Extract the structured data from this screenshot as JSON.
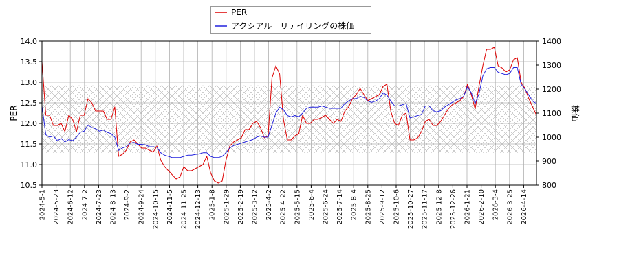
{
  "chart_data": {
    "type": "line",
    "legend_placement": "top",
    "grid": true,
    "x_tick_labels": [
      "2024-5-1",
      "2024-5-23",
      "2024-6-12",
      "2024-7-2",
      "2024-7-23",
      "2024-8-13",
      "2024-9-2",
      "2024-9-24",
      "2024-10-15",
      "2024-11-5",
      "2024-11-25",
      "2024-12-13",
      "2025-1-8",
      "2025-1-29",
      "2025-2-19",
      "2025-3-12",
      "2025-4-2",
      "2025-4-22",
      "2025-5-15",
      "2025-6-4",
      "2025-6-24",
      "2025-7-14",
      "2025-8-4",
      "2025-8-25",
      "2025-9-12",
      "2025-10-6",
      "2025-10-27",
      "2025-11-17",
      "2025-12-8",
      "2025-12-26",
      "2026-1-21",
      "2026-2-10",
      "2026-3-4",
      "2026-3-25",
      "2026-4-14"
    ],
    "y_left": {
      "label": "PER",
      "range": [
        10.5,
        14.0
      ],
      "ticks": [
        "10.5",
        "11.0",
        "11.5",
        "12.0",
        "12.5",
        "13.0",
        "13.5",
        "14.0"
      ]
    },
    "y_right": {
      "label": "株価",
      "range": [
        800,
        1400
      ],
      "ticks": [
        "800",
        "900",
        "1000",
        "1100",
        "1200",
        "1300",
        "1400"
      ]
    },
    "hatched_band": {
      "axis": "right",
      "range": [
        935,
        1215
      ]
    },
    "series": [
      {
        "name": "PER",
        "axis": "left",
        "color": "#dd0000",
        "values": [
          13.5,
          12.2,
          12.2,
          11.95,
          11.95,
          12.0,
          11.8,
          12.2,
          12.1,
          11.8,
          12.2,
          12.2,
          12.6,
          12.5,
          12.3,
          12.3,
          12.3,
          12.1,
          12.1,
          12.4,
          11.2,
          11.25,
          11.35,
          11.55,
          11.6,
          11.5,
          11.4,
          11.4,
          11.35,
          11.3,
          11.45,
          11.1,
          10.95,
          10.85,
          10.75,
          10.65,
          10.7,
          10.95,
          10.85,
          10.85,
          10.9,
          10.95,
          11.0,
          11.2,
          10.8,
          10.6,
          10.55,
          10.6,
          11.1,
          11.45,
          11.55,
          11.6,
          11.65,
          11.85,
          11.85,
          12.0,
          12.05,
          11.9,
          11.65,
          11.7,
          13.1,
          13.4,
          13.2,
          12.1,
          11.6,
          11.6,
          11.7,
          11.75,
          12.2,
          12.0,
          12.0,
          12.1,
          12.1,
          12.15,
          12.2,
          12.1,
          12.0,
          12.1,
          12.05,
          12.3,
          12.4,
          12.6,
          12.7,
          12.85,
          12.7,
          12.55,
          12.6,
          12.65,
          12.7,
          12.9,
          12.95,
          12.3,
          12.0,
          11.95,
          12.2,
          12.25,
          11.6,
          11.6,
          11.65,
          11.8,
          12.05,
          12.1,
          11.95,
          11.95,
          12.05,
          12.2,
          12.35,
          12.45,
          12.5,
          12.55,
          12.65,
          12.95,
          12.7,
          12.35,
          12.9,
          13.4,
          13.8,
          13.8,
          13.85,
          13.4,
          13.35,
          13.25,
          13.3,
          13.55,
          13.6,
          13.0,
          12.85,
          12.6,
          12.4,
          12.2
        ]
      },
      {
        "name": "アクシアル　リテイリングの株価",
        "axis": "right",
        "color": "#2222dd",
        "values": [
          1130,
          1010,
          1000,
          1005,
          985,
          995,
          980,
          990,
          985,
          1000,
          1020,
          1025,
          1050,
          1040,
          1035,
          1025,
          1030,
          1020,
          1015,
          1000,
          945,
          955,
          960,
          975,
          978,
          970,
          970,
          968,
          960,
          960,
          958,
          935,
          925,
          920,
          915,
          915,
          915,
          920,
          925,
          925,
          928,
          930,
          935,
          935,
          920,
          915,
          915,
          920,
          935,
          955,
          965,
          970,
          975,
          980,
          985,
          990,
          1000,
          1005,
          1000,
          1000,
          1050,
          1100,
          1125,
          1115,
          1090,
          1085,
          1090,
          1085,
          1100,
          1120,
          1125,
          1125,
          1125,
          1130,
          1125,
          1120,
          1120,
          1120,
          1120,
          1140,
          1150,
          1160,
          1160,
          1170,
          1165,
          1150,
          1145,
          1150,
          1160,
          1185,
          1175,
          1150,
          1130,
          1130,
          1135,
          1140,
          1080,
          1085,
          1090,
          1095,
          1130,
          1130,
          1110,
          1105,
          1110,
          1125,
          1135,
          1145,
          1155,
          1160,
          1170,
          1210,
          1185,
          1140,
          1180,
          1255,
          1285,
          1290,
          1290,
          1270,
          1265,
          1260,
          1265,
          1290,
          1290,
          1220,
          1200,
          1175,
          1150,
          1140
        ]
      }
    ]
  }
}
